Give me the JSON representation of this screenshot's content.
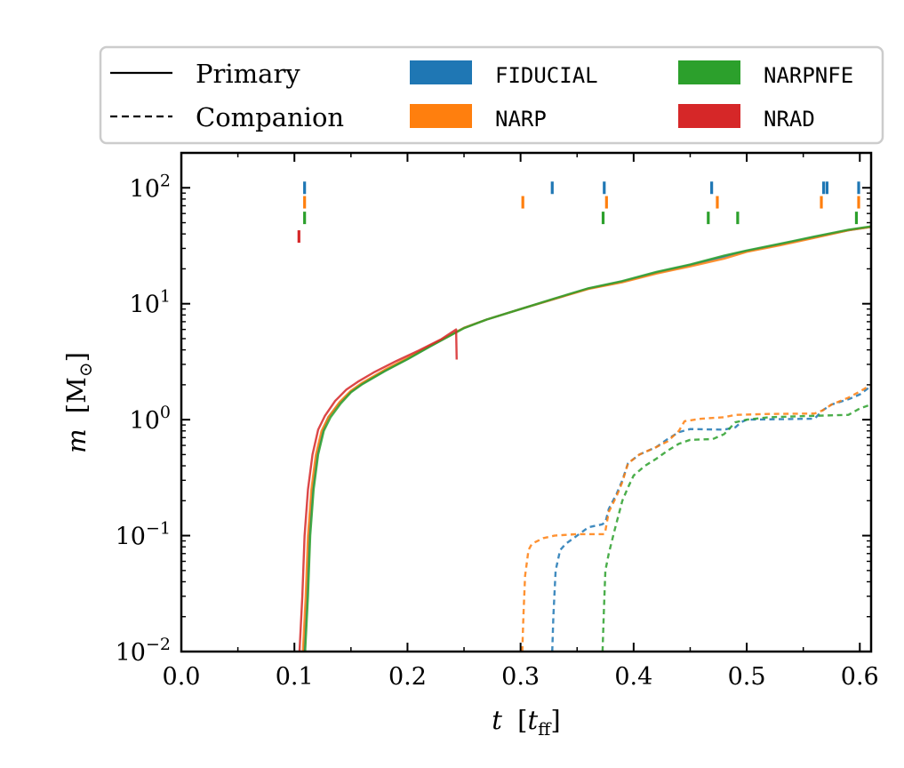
{
  "chart_data": {
    "type": "line",
    "title": "",
    "xlabel": "t [t_ff]",
    "ylabel": "m [M☉]",
    "xlabel_parts": {
      "var": "t",
      "unit_open": "[",
      "unit_var": "t",
      "unit_sub": "ff",
      "unit_close": "]"
    },
    "ylabel_parts": {
      "var": "m",
      "unit_open": "[",
      "unit_var": "M",
      "unit_sub": "⊙",
      "unit_close": "]"
    },
    "xlim": [
      0.0,
      0.61
    ],
    "ylim": [
      0.01,
      200
    ],
    "yscale": "log",
    "xticks": [
      0.0,
      0.1,
      0.2,
      0.3,
      0.4,
      0.5,
      0.6
    ],
    "xtick_labels": [
      "0.0",
      "0.1",
      "0.2",
      "0.3",
      "0.4",
      "0.5",
      "0.6"
    ],
    "yticks": [
      0.01,
      0.1,
      1,
      10,
      100
    ],
    "ytick_labels": [
      {
        "base": "10",
        "exp": "−2"
      },
      {
        "base": "10",
        "exp": "−1"
      },
      {
        "base": "10",
        "exp": "0"
      },
      {
        "base": "10",
        "exp": "1"
      },
      {
        "base": "10",
        "exp": "2"
      }
    ],
    "legend": {
      "position": "top (above axes)",
      "linestyles": [
        {
          "label": "Primary",
          "style": "solid"
        },
        {
          "label": "Companion",
          "style": "dashed"
        }
      ],
      "models": [
        {
          "label": "FIDUCIAL",
          "color": "#1f77b4"
        },
        {
          "label": "NARP",
          "color": "#ff7f0e"
        },
        {
          "label": "NARPNFE",
          "color": "#2ca02c"
        },
        {
          "label": "NRAD",
          "color": "#d62728"
        }
      ]
    },
    "series": [
      {
        "name": "FIDUCIAL primary",
        "model": "FIDUCIAL",
        "style": "solid",
        "color": "#1f77b4",
        "points": [
          [
            0.1085,
            0.01
          ],
          [
            0.111,
            0.03
          ],
          [
            0.113,
            0.1
          ],
          [
            0.116,
            0.25
          ],
          [
            0.12,
            0.5
          ],
          [
            0.125,
            0.8
          ],
          [
            0.13,
            1.05
          ],
          [
            0.14,
            1.4
          ],
          [
            0.15,
            1.75
          ],
          [
            0.16,
            2.05
          ],
          [
            0.18,
            2.65
          ],
          [
            0.2,
            3.35
          ],
          [
            0.22,
            4.3
          ],
          [
            0.24,
            5.5
          ],
          [
            0.25,
            6.2
          ],
          [
            0.27,
            7.3
          ],
          [
            0.3,
            9.0
          ],
          [
            0.33,
            11.0
          ],
          [
            0.36,
            13.5
          ],
          [
            0.39,
            15.5
          ],
          [
            0.42,
            18.5
          ],
          [
            0.45,
            21.5
          ],
          [
            0.48,
            25.5
          ],
          [
            0.5,
            28.5
          ],
          [
            0.53,
            32.5
          ],
          [
            0.56,
            37.5
          ],
          [
            0.59,
            43
          ],
          [
            0.61,
            46
          ]
        ]
      },
      {
        "name": "NARP primary",
        "model": "NARP",
        "style": "solid",
        "color": "#ff7f0e",
        "points": [
          [
            0.1075,
            0.01
          ],
          [
            0.11,
            0.03
          ],
          [
            0.112,
            0.1
          ],
          [
            0.115,
            0.25
          ],
          [
            0.119,
            0.5
          ],
          [
            0.124,
            0.8
          ],
          [
            0.13,
            1.05
          ],
          [
            0.14,
            1.42
          ],
          [
            0.15,
            1.78
          ],
          [
            0.16,
            2.08
          ],
          [
            0.18,
            2.7
          ],
          [
            0.2,
            3.4
          ],
          [
            0.22,
            4.35
          ],
          [
            0.24,
            5.5
          ],
          [
            0.25,
            6.2
          ],
          [
            0.27,
            7.3
          ],
          [
            0.3,
            9.0
          ],
          [
            0.33,
            11.0
          ],
          [
            0.36,
            13.4
          ],
          [
            0.39,
            15.3
          ],
          [
            0.42,
            18.2
          ],
          [
            0.45,
            21
          ],
          [
            0.48,
            24.5
          ],
          [
            0.5,
            28
          ],
          [
            0.53,
            32
          ],
          [
            0.56,
            37
          ],
          [
            0.59,
            43
          ],
          [
            0.61,
            46
          ]
        ]
      },
      {
        "name": "NARPNFE primary",
        "model": "NARPNFE",
        "style": "solid",
        "color": "#2ca02c",
        "points": [
          [
            0.1095,
            0.01
          ],
          [
            0.112,
            0.03
          ],
          [
            0.114,
            0.1
          ],
          [
            0.117,
            0.25
          ],
          [
            0.121,
            0.5
          ],
          [
            0.126,
            0.8
          ],
          [
            0.132,
            1.05
          ],
          [
            0.141,
            1.38
          ],
          [
            0.15,
            1.72
          ],
          [
            0.16,
            2.02
          ],
          [
            0.18,
            2.62
          ],
          [
            0.2,
            3.32
          ],
          [
            0.22,
            4.28
          ],
          [
            0.24,
            5.45
          ],
          [
            0.25,
            6.15
          ],
          [
            0.27,
            7.3
          ],
          [
            0.3,
            9.0
          ],
          [
            0.33,
            11.1
          ],
          [
            0.36,
            13.6
          ],
          [
            0.39,
            15.7
          ],
          [
            0.42,
            18.8
          ],
          [
            0.45,
            21.8
          ],
          [
            0.48,
            26
          ],
          [
            0.5,
            28.8
          ],
          [
            0.53,
            33
          ],
          [
            0.56,
            38
          ],
          [
            0.59,
            43.5
          ],
          [
            0.61,
            46.5
          ]
        ]
      },
      {
        "name": "NRAD primary",
        "model": "NRAD",
        "style": "solid",
        "color": "#d62728",
        "points": [
          [
            0.1045,
            0.01
          ],
          [
            0.107,
            0.03
          ],
          [
            0.109,
            0.1
          ],
          [
            0.112,
            0.25
          ],
          [
            0.116,
            0.5
          ],
          [
            0.121,
            0.82
          ],
          [
            0.127,
            1.08
          ],
          [
            0.136,
            1.45
          ],
          [
            0.146,
            1.82
          ],
          [
            0.156,
            2.12
          ],
          [
            0.17,
            2.55
          ],
          [
            0.19,
            3.2
          ],
          [
            0.21,
            3.95
          ],
          [
            0.23,
            4.95
          ],
          [
            0.243,
            6.0
          ],
          [
            0.2435,
            3.3
          ]
        ]
      },
      {
        "name": "FIDUCIAL companion",
        "model": "FIDUCIAL",
        "style": "dashed",
        "color": "#1f77b4",
        "points": [
          [
            0.328,
            0.01
          ],
          [
            0.329,
            0.02
          ],
          [
            0.331,
            0.05
          ],
          [
            0.335,
            0.075
          ],
          [
            0.34,
            0.085
          ],
          [
            0.35,
            0.1
          ],
          [
            0.36,
            0.118
          ],
          [
            0.372,
            0.125
          ],
          [
            0.375,
            0.13
          ],
          [
            0.378,
            0.17
          ],
          [
            0.385,
            0.23
          ],
          [
            0.39,
            0.3
          ],
          [
            0.395,
            0.42
          ],
          [
            0.405,
            0.5
          ],
          [
            0.42,
            0.58
          ],
          [
            0.43,
            0.68
          ],
          [
            0.44,
            0.78
          ],
          [
            0.45,
            0.83
          ],
          [
            0.48,
            0.82
          ],
          [
            0.49,
            0.86
          ],
          [
            0.495,
            0.95
          ],
          [
            0.5,
            1.0
          ],
          [
            0.56,
            1.02
          ],
          [
            0.567,
            1.2
          ],
          [
            0.575,
            1.35
          ],
          [
            0.59,
            1.5
          ],
          [
            0.6,
            1.65
          ],
          [
            0.61,
            1.95
          ]
        ]
      },
      {
        "name": "NARP companion",
        "model": "NARP",
        "style": "dashed",
        "color": "#ff7f0e",
        "points": [
          [
            0.3015,
            0.01
          ],
          [
            0.3025,
            0.02
          ],
          [
            0.304,
            0.045
          ],
          [
            0.307,
            0.075
          ],
          [
            0.31,
            0.085
          ],
          [
            0.32,
            0.095
          ],
          [
            0.33,
            0.1
          ],
          [
            0.35,
            0.103
          ],
          [
            0.374,
            0.103
          ],
          [
            0.375,
            0.11
          ],
          [
            0.378,
            0.16
          ],
          [
            0.385,
            0.22
          ],
          [
            0.39,
            0.29
          ],
          [
            0.395,
            0.42
          ],
          [
            0.405,
            0.5
          ],
          [
            0.42,
            0.58
          ],
          [
            0.43,
            0.65
          ],
          [
            0.44,
            0.8
          ],
          [
            0.445,
            0.97
          ],
          [
            0.46,
            1.02
          ],
          [
            0.48,
            1.05
          ],
          [
            0.49,
            1.1
          ],
          [
            0.52,
            1.12
          ],
          [
            0.56,
            1.13
          ],
          [
            0.567,
            1.2
          ],
          [
            0.575,
            1.35
          ],
          [
            0.59,
            1.55
          ],
          [
            0.6,
            1.75
          ],
          [
            0.61,
            2.0
          ]
        ]
      },
      {
        "name": "NARPNFE companion",
        "model": "NARPNFE",
        "style": "dashed",
        "color": "#2ca02c",
        "points": [
          [
            0.3725,
            0.01
          ],
          [
            0.3735,
            0.02
          ],
          [
            0.375,
            0.05
          ],
          [
            0.378,
            0.07
          ],
          [
            0.383,
            0.11
          ],
          [
            0.39,
            0.2
          ],
          [
            0.395,
            0.26
          ],
          [
            0.4,
            0.33
          ],
          [
            0.41,
            0.4
          ],
          [
            0.42,
            0.46
          ],
          [
            0.43,
            0.54
          ],
          [
            0.44,
            0.62
          ],
          [
            0.45,
            0.67
          ],
          [
            0.47,
            0.68
          ],
          [
            0.48,
            0.75
          ],
          [
            0.49,
            0.95
          ],
          [
            0.5,
            1.0
          ],
          [
            0.52,
            1.05
          ],
          [
            0.56,
            1.08
          ],
          [
            0.59,
            1.1
          ],
          [
            0.6,
            1.25
          ],
          [
            0.61,
            1.35
          ]
        ]
      }
    ],
    "event_ticks": [
      {
        "model": "FIDUCIAL",
        "color": "#1f77b4",
        "y": 100,
        "times": [
          0.109,
          0.328,
          0.374,
          0.469,
          0.568,
          0.571,
          0.599
        ]
      },
      {
        "model": "NARP",
        "color": "#ff7f0e",
        "y": 75,
        "times": [
          0.109,
          0.302,
          0.376,
          0.474,
          0.566,
          0.599
        ]
      },
      {
        "model": "NARPNFE",
        "color": "#2ca02c",
        "y": 55,
        "times": [
          0.109,
          0.373,
          0.466,
          0.492,
          0.597
        ]
      },
      {
        "model": "NRAD",
        "color": "#d62728",
        "y": 38,
        "times": [
          0.104
        ]
      }
    ]
  }
}
